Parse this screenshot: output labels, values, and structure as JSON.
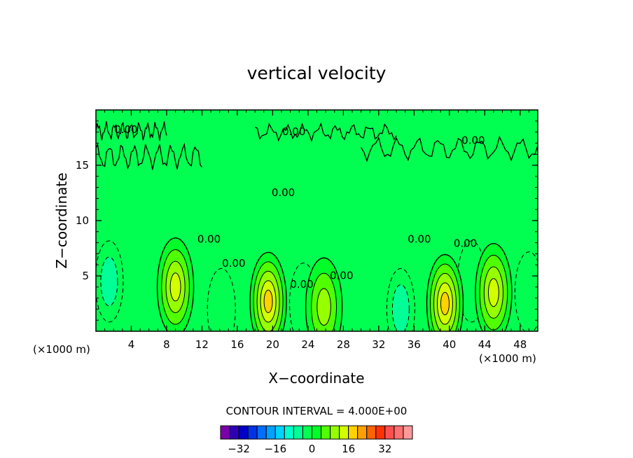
{
  "chart_data": {
    "type": "contour",
    "title": "vertical velocity",
    "xlabel": "X−coordinate",
    "ylabel": "Z−coordinate",
    "x_unit": "(×1000 m)",
    "y_unit": "(×1000 m)",
    "xlim": [
      0,
      50
    ],
    "ylim": [
      0,
      20
    ],
    "x_ticks": [
      4,
      8,
      12,
      16,
      20,
      24,
      28,
      32,
      36,
      40,
      44,
      48
    ],
    "x_tick_labels": [
      "4",
      "8",
      "12",
      "16",
      "20",
      "24",
      "28",
      "32",
      "36",
      "40",
      "44",
      "48"
    ],
    "y_ticks": [
      5,
      10,
      15
    ],
    "y_tick_labels": [
      "5",
      "10",
      "15"
    ],
    "contour_interval_text": "CONTOUR INTERVAL = 4.000E+00",
    "contour_label": "0.00",
    "contour_label_positions": [
      [
        3.4,
        18.2
      ],
      [
        22.4,
        18.0
      ],
      [
        42.7,
        17.2
      ],
      [
        21.2,
        12.5
      ],
      [
        12.8,
        8.3
      ],
      [
        15.6,
        6.1
      ],
      [
        23.3,
        4.2
      ],
      [
        27.8,
        5.0
      ],
      [
        36.6,
        8.3
      ],
      [
        41.8,
        7.9
      ]
    ],
    "updrafts": [
      {
        "x": 9.0,
        "z": 4.0,
        "max_level": 12
      },
      {
        "x": 19.5,
        "z": 2.7,
        "max_level": 16
      },
      {
        "x": 39.5,
        "z": 2.5,
        "max_level": 16
      },
      {
        "x": 45.0,
        "z": 3.5,
        "max_level": 12
      },
      {
        "x": 25.8,
        "z": 2.2,
        "max_level": 8
      }
    ],
    "downdrafts": [
      {
        "x": 1.5,
        "z": 4.5,
        "min_level": -8
      },
      {
        "x": 14.2,
        "z": 2.0,
        "min_level": -4
      },
      {
        "x": 23.5,
        "z": 2.5,
        "min_level": -4
      },
      {
        "x": 34.5,
        "z": 2.0,
        "min_level": -8
      },
      {
        "x": 42.5,
        "z": 4.5,
        "min_level": -4
      },
      {
        "x": 49.0,
        "z": 3.5,
        "min_level": -4
      }
    ],
    "colorbar": {
      "levels": [
        -36,
        -32,
        -28,
        -24,
        -20,
        -16,
        -12,
        -8,
        -4,
        0,
        4,
        8,
        12,
        16,
        20,
        24,
        28,
        32,
        36
      ],
      "colors": [
        "#7a00aa",
        "#3000b8",
        "#0000c8",
        "#0032e6",
        "#006eff",
        "#00a0ff",
        "#00d2ff",
        "#00ffcc",
        "#00ff96",
        "#00ff50",
        "#00ff28",
        "#50ff00",
        "#96ff00",
        "#d2ff00",
        "#ffd200",
        "#ffa000",
        "#ff6400",
        "#ff3200",
        "#ff5050",
        "#ff7070",
        "#ff9a9a"
      ],
      "tick_values": [
        -32,
        -16,
        0,
        16,
        32
      ],
      "tick_labels": [
        "−32",
        "−16",
        "0",
        "16",
        "32"
      ]
    },
    "background_color": "#00ff50",
    "grid": false,
    "legend": "colorbar-bottom"
  }
}
